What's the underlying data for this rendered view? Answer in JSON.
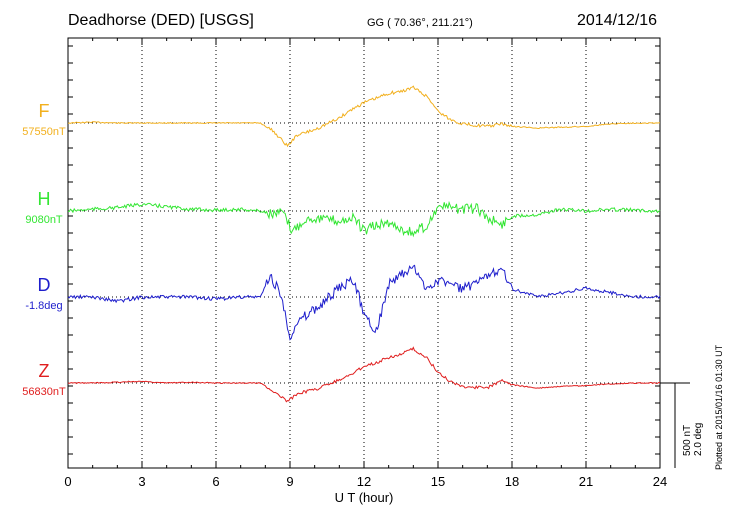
{
  "header": {
    "station": "Deadhorse (DED)  [USGS]",
    "coords": "GG ( 70.36°, 211.21°)",
    "date": "2014/12/16"
  },
  "plotted_note": "Plotted at 2015/01/16 01:30 UT",
  "scale_label": "500 nT\n2.0 deg",
  "colors": {
    "F": "#f2b01e",
    "H": "#33e633",
    "D": "#1e1ecc",
    "Z": "#e01e1e",
    "axis": "#000000"
  },
  "chart_data": {
    "type": "line",
    "xlabel": "U T (hour)",
    "xlim": [
      0,
      24
    ],
    "x_ticks": [
      0,
      3,
      6,
      9,
      12,
      15,
      18,
      21,
      24
    ],
    "grid": "dotted",
    "scale_bar": {
      "nT": 500,
      "deg": 2.0
    },
    "series": [
      {
        "name": "F",
        "baseline_label": "57550nT",
        "x": [
          0,
          1,
          2,
          3,
          4,
          5,
          6,
          7,
          7.8,
          8.3,
          8.9,
          9.3,
          10,
          11,
          11.5,
          12,
          12.5,
          13,
          13.5,
          14,
          14.6,
          15,
          15.5,
          16,
          17,
          17.6,
          18,
          19,
          20,
          21,
          22,
          23,
          24
        ],
        "values": [
          0,
          5,
          0,
          0,
          0,
          0,
          0,
          0,
          0,
          -45,
          -135,
          -70,
          -40,
          30,
          80,
          120,
          145,
          175,
          185,
          210,
          150,
          70,
          20,
          -5,
          -20,
          -5,
          -20,
          -30,
          -25,
          -20,
          -5,
          0,
          0
        ]
      },
      {
        "name": "H",
        "baseline_label": "9080nT",
        "x": [
          0,
          1,
          2,
          3,
          4,
          5,
          6,
          7,
          7.8,
          8.3,
          8.7,
          9.1,
          9.6,
          10,
          11,
          11.6,
          12,
          12.4,
          13,
          13.6,
          14,
          14.6,
          15,
          15.5,
          16,
          16.6,
          17,
          17.6,
          18,
          19,
          20,
          21,
          22,
          23,
          24
        ],
        "values": [
          0,
          10,
          20,
          40,
          25,
          10,
          5,
          10,
          0,
          -20,
          -10,
          -120,
          -50,
          -40,
          -60,
          -40,
          -120,
          -90,
          -70,
          -110,
          -130,
          -80,
          30,
          20,
          10,
          15,
          -40,
          -80,
          -30,
          -20,
          10,
          0,
          10,
          5,
          0
        ]
      },
      {
        "name": "D",
        "baseline_label": "-1.8deg",
        "x": [
          0,
          1,
          2,
          3,
          4,
          5,
          6,
          7,
          7.8,
          8.2,
          8.6,
          9,
          9.5,
          10,
          11,
          11.6,
          12,
          12.5,
          13,
          13.5,
          14,
          14.5,
          15,
          15.5,
          16,
          16.6,
          17,
          17.6,
          18,
          19,
          20,
          21,
          22,
          23,
          24
        ],
        "deg": [
          0,
          0,
          -0.1,
          0,
          0,
          0,
          -0.05,
          0,
          0,
          0.5,
          0.1,
          -0.9,
          -0.5,
          -0.3,
          0.2,
          0.4,
          -0.4,
          -0.8,
          0.3,
          0.5,
          0.7,
          0.2,
          0.4,
          0.3,
          0.2,
          0.3,
          0.5,
          0.7,
          0.2,
          0,
          0.1,
          0.2,
          0.1,
          0,
          0
        ]
      },
      {
        "name": "Z",
        "baseline_label": "56830nT",
        "x": [
          0,
          1,
          2,
          3,
          4,
          5,
          6,
          7,
          7.8,
          8.3,
          8.9,
          9.3,
          10,
          11,
          11.5,
          12,
          12.5,
          13,
          13.5,
          14,
          14.6,
          15,
          15.5,
          16,
          17,
          17.6,
          18,
          19,
          20,
          21,
          22,
          23,
          24
        ],
        "values": [
          0,
          0,
          5,
          10,
          0,
          5,
          0,
          0,
          0,
          -45,
          -110,
          -60,
          -40,
          20,
          50,
          100,
          120,
          150,
          170,
          200,
          140,
          60,
          10,
          -20,
          -30,
          20,
          -10,
          -30,
          -20,
          -15,
          -5,
          0,
          0
        ]
      }
    ]
  }
}
